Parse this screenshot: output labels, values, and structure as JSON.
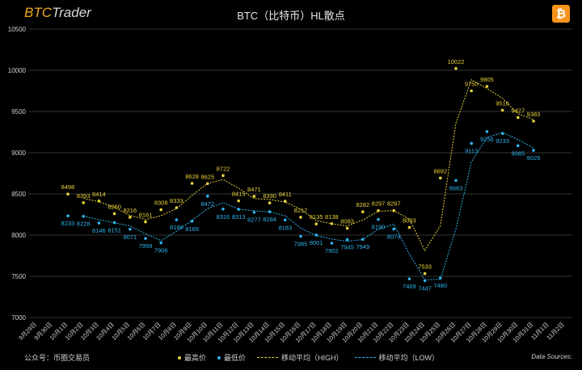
{
  "header": {
    "brand_prefix": "BTC",
    "brand_suffix": "Trader",
    "btc_icon": "bitcoin-icon",
    "btc_glyph": "₿"
  },
  "footer": {
    "account": "公众号：币圈交易员",
    "source": "Data Sources: "
  },
  "colors": {
    "high": "#e8d33a",
    "low": "#2fb4ee",
    "axis_text": "#cfcfcf",
    "grid": "#333333",
    "background": "#000000"
  },
  "chart_data": {
    "type": "scatter",
    "title": "BTC（比特币）HL散点",
    "xlabel": "",
    "ylabel": "",
    "ylim": [
      7000,
      10500
    ],
    "yticks": [
      7000,
      7500,
      8000,
      8500,
      9000,
      9500,
      10000,
      10500
    ],
    "grid": "horizontal",
    "legend_position": "bottom",
    "categories": [
      "9月29日",
      "9月30日",
      "10月1日",
      "10月2日",
      "10月3日",
      "10月4日",
      "10月5日",
      "10月6日",
      "10月7日",
      "10月8日",
      "10月9日",
      "10月10日",
      "10月11日",
      "10月12日",
      "10月13日",
      "10月14日",
      "10月15日",
      "10月16日",
      "10月17日",
      "10月18日",
      "10月19日",
      "10月20日",
      "10月21日",
      "10月22日",
      "10月23日",
      "10月24日",
      "10月25日",
      "10月26日",
      "10月27日",
      "10月28日",
      "10月29日",
      "10月30日",
      "10月31日",
      "11月1日",
      "11月2日"
    ],
    "series": [
      {
        "name": "最高价",
        "kind": "scatter",
        "color": "#e8d33a",
        "values": [
          null,
          null,
          8498,
          8393,
          8414,
          8260,
          8216,
          8161,
          8308,
          8333,
          8628,
          8625,
          8722,
          8415,
          8471,
          8390,
          8411,
          8217,
          8135,
          8138,
          8083,
          8282,
          8297,
          8297,
          8093,
          7533,
          8692,
          10022,
          9750,
          9805,
          9516,
          9427,
          9383,
          null,
          null
        ]
      },
      {
        "name": "最低价",
        "kind": "scatter",
        "color": "#2fb4ee",
        "values": [
          null,
          null,
          8233,
          8228,
          8146,
          8151,
          8071,
          7959,
          7906,
          8186,
          8169,
          8472,
          8316,
          8313,
          8277,
          8284,
          8183,
          7985,
          8001,
          7902,
          7945,
          7949,
          8190,
          8074,
          7469,
          7447,
          7480,
          8663,
          9113,
          9256,
          9233,
          9085,
          9029,
          null,
          null
        ]
      },
      {
        "name": "移动平均（HIGH）",
        "kind": "line",
        "color": "#e8d33a",
        "values": [
          null,
          null,
          null,
          8446,
          8404,
          8337,
          8238,
          8189,
          8235,
          8321,
          8481,
          8627,
          8674,
          8569,
          8443,
          8431,
          8401,
          8314,
          8176,
          8137,
          8111,
          8183,
          8290,
          8297,
          8195,
          7813,
          8113,
          9357,
          9886,
          9778,
          9661,
          9472,
          9405,
          null,
          null
        ]
      },
      {
        "name": "移动平均（LOW）",
        "kind": "line",
        "color": "#2fb4ee",
        "values": [
          null,
          null,
          null,
          8231,
          8187,
          8149,
          8111,
          8015,
          7933,
          8046,
          8178,
          8321,
          8394,
          8315,
          8295,
          8281,
          8234,
          8084,
          7993,
          7952,
          7924,
          7947,
          8070,
          8132,
          7772,
          7458,
          7464,
          8072,
          8888,
          9185,
          9245,
          9159,
          9057,
          null,
          null
        ]
      }
    ]
  }
}
